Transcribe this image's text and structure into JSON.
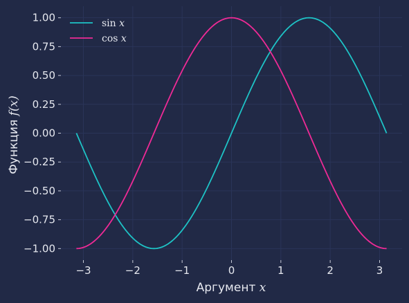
{
  "chart_data": {
    "type": "line",
    "xlabel_prefix": "Аргумент ",
    "xlabel_var": "x",
    "ylabel_prefix": "Функция ",
    "ylabel_var": "f(x)",
    "xlim": [
      -3.4557519189487724,
      3.4557519189487724
    ],
    "ylim": [
      -1.1,
      1.1
    ],
    "xticks": [
      -3,
      -2,
      -1,
      0,
      1,
      2,
      3
    ],
    "xtick_labels": [
      "−3",
      "−2",
      "−1",
      "0",
      "1",
      "2",
      "3"
    ],
    "yticks": [
      -1.0,
      -0.75,
      -0.5,
      -0.25,
      0.0,
      0.25,
      0.5,
      0.75,
      1.0
    ],
    "ytick_labels": [
      "−1.00",
      "−0.75",
      "−0.50",
      "−0.25",
      "0.00",
      "0.25",
      "0.50",
      "0.75",
      "1.00"
    ],
    "grid": true,
    "legend_position": "top-left",
    "background": "#212946",
    "grid_color": "#2a3459",
    "series": [
      {
        "name": "sin x",
        "fn": "sin",
        "x_range": [
          -3.14159,
          3.14159
        ],
        "color": "#1ec3c6"
      },
      {
        "name": "cos x",
        "fn": "cos",
        "x_range": [
          -3.14159,
          3.14159
        ],
        "color": "#ef2a96"
      }
    ],
    "legend": [
      {
        "func": "sin",
        "var": "x",
        "color": "#1ec3c6"
      },
      {
        "func": "cos",
        "var": "x",
        "color": "#ef2a96"
      }
    ]
  }
}
